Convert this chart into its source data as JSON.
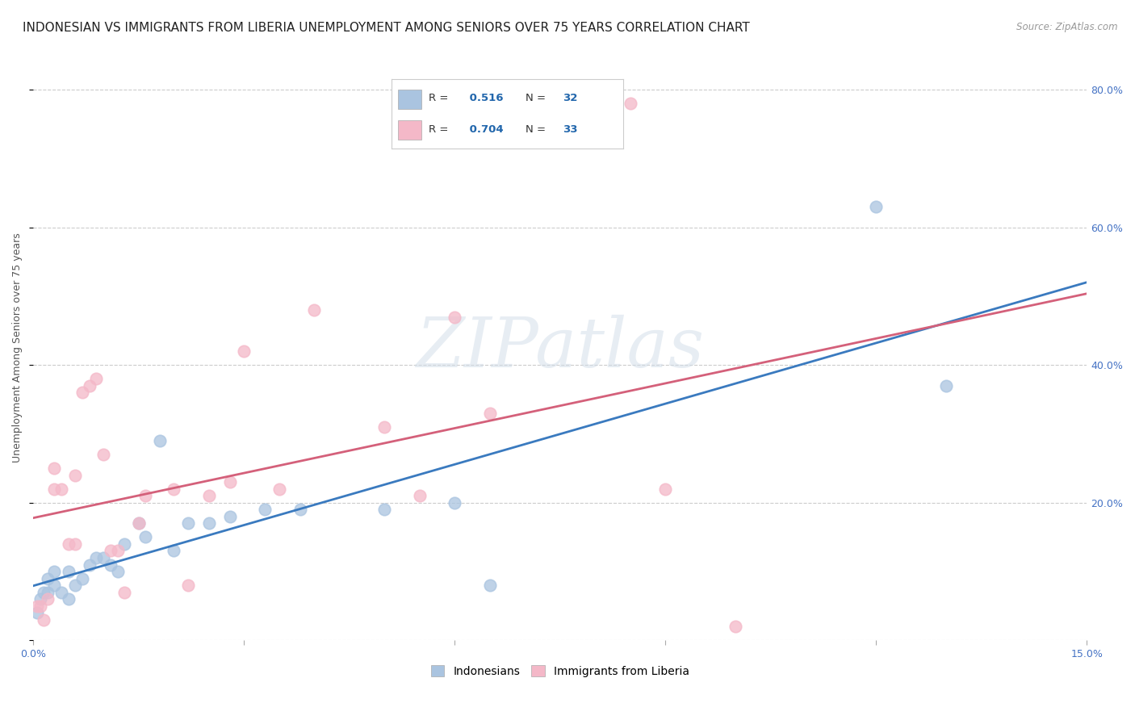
{
  "title": "INDONESIAN VS IMMIGRANTS FROM LIBERIA UNEMPLOYMENT AMONG SENIORS OVER 75 YEARS CORRELATION CHART",
  "source": "Source: ZipAtlas.com",
  "ylabel": "Unemployment Among Seniors over 75 years",
  "watermark": "ZIPatlas",
  "blue_R": 0.516,
  "blue_N": 32,
  "pink_R": 0.704,
  "pink_N": 33,
  "blue_color": "#aac4e0",
  "pink_color": "#f4b8c8",
  "blue_line_color": "#3a7abf",
  "pink_line_color": "#d4607a",
  "xlim": [
    0.0,
    0.15
  ],
  "ylim": [
    0.0,
    0.85
  ],
  "xticks": [
    0.0,
    0.03,
    0.06,
    0.09,
    0.12,
    0.15
  ],
  "yticks": [
    0.0,
    0.2,
    0.4,
    0.6,
    0.8
  ],
  "blue_x": [
    0.0005,
    0.001,
    0.0015,
    0.002,
    0.002,
    0.003,
    0.003,
    0.004,
    0.005,
    0.005,
    0.006,
    0.007,
    0.008,
    0.009,
    0.01,
    0.011,
    0.012,
    0.013,
    0.015,
    0.016,
    0.018,
    0.02,
    0.022,
    0.025,
    0.028,
    0.033,
    0.038,
    0.05,
    0.06,
    0.065,
    0.12,
    0.13
  ],
  "blue_y": [
    0.04,
    0.06,
    0.07,
    0.07,
    0.09,
    0.08,
    0.1,
    0.07,
    0.06,
    0.1,
    0.08,
    0.09,
    0.11,
    0.12,
    0.12,
    0.11,
    0.1,
    0.14,
    0.17,
    0.15,
    0.29,
    0.13,
    0.17,
    0.17,
    0.18,
    0.19,
    0.19,
    0.19,
    0.2,
    0.08,
    0.63,
    0.37
  ],
  "pink_x": [
    0.0005,
    0.001,
    0.0015,
    0.002,
    0.003,
    0.003,
    0.004,
    0.005,
    0.006,
    0.006,
    0.007,
    0.008,
    0.009,
    0.01,
    0.011,
    0.012,
    0.013,
    0.015,
    0.016,
    0.02,
    0.022,
    0.025,
    0.028,
    0.03,
    0.035,
    0.04,
    0.05,
    0.055,
    0.06,
    0.065,
    0.085,
    0.09,
    0.1
  ],
  "pink_y": [
    0.05,
    0.05,
    0.03,
    0.06,
    0.22,
    0.25,
    0.22,
    0.14,
    0.14,
    0.24,
    0.36,
    0.37,
    0.38,
    0.27,
    0.13,
    0.13,
    0.07,
    0.17,
    0.21,
    0.22,
    0.08,
    0.21,
    0.23,
    0.42,
    0.22,
    0.48,
    0.31,
    0.21,
    0.47,
    0.33,
    0.78,
    0.22,
    0.02
  ],
  "legend_entries": [
    "Indonesians",
    "Immigrants from Liberia"
  ],
  "background_color": "#ffffff",
  "grid_color": "#cccccc",
  "title_fontsize": 11,
  "axis_label_fontsize": 9,
  "tick_fontsize": 9,
  "tick_color": "#4472c4",
  "legend_fontsize": 10
}
